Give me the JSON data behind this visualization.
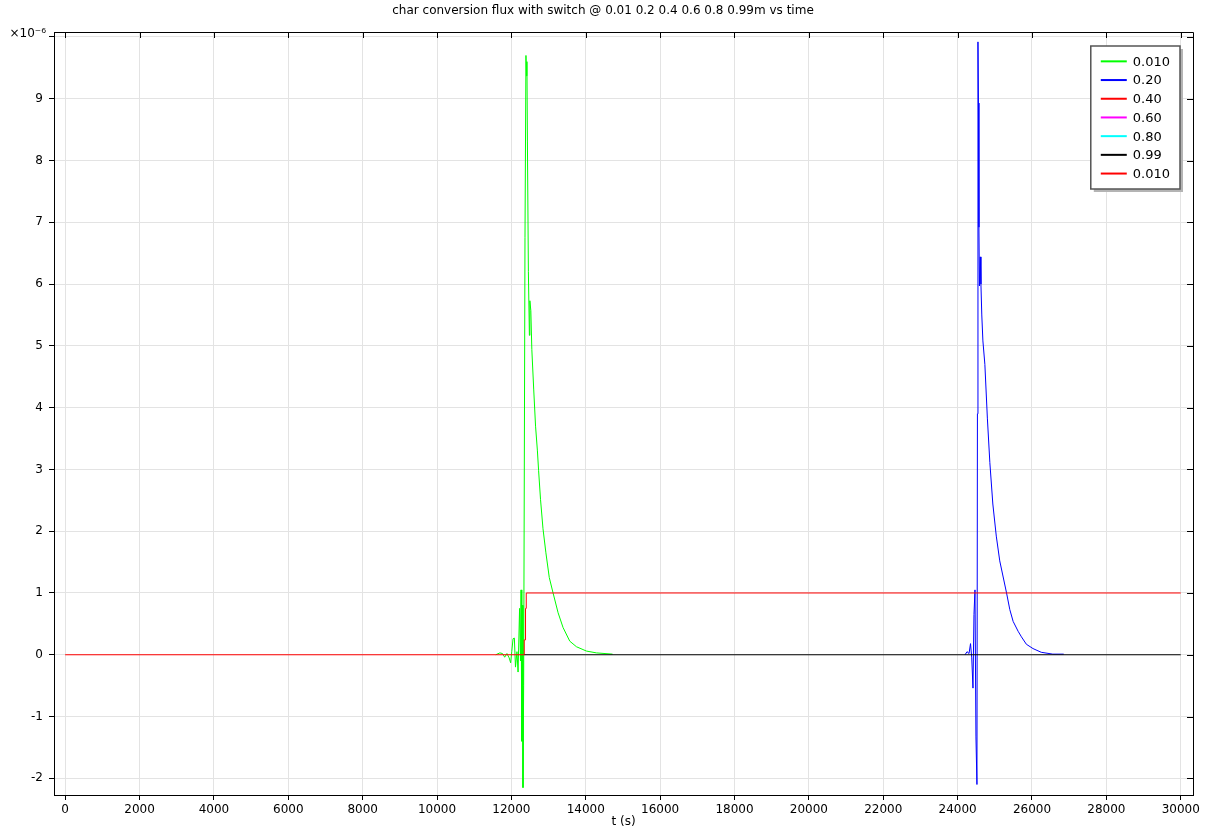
{
  "chart_data": {
    "type": "line",
    "title": "char conversion flux with switch @ 0.01 0.2 0.4 0.6 0.8 0.99m vs time",
    "xlabel": "t (s)",
    "annotations": [
      "×10⁻⁶"
    ],
    "xlim": [
      -300,
      30330
    ],
    "xticks": [
      0,
      2000,
      4000,
      6000,
      8000,
      10000,
      12000,
      14000,
      16000,
      18000,
      20000,
      22000,
      24000,
      26000,
      28000,
      30000
    ],
    "ylim": [
      -2.27,
      10.08
    ],
    "yticks": [
      -2,
      -1,
      0,
      1,
      2,
      3,
      4,
      5,
      6,
      7,
      8,
      9,
      {
        "value": 10,
        "label": null
      }
    ],
    "grid": true,
    "legend": "top right",
    "marker": "none",
    "line_style": "solid",
    "series": [
      {
        "name": "0.010",
        "color": "#00ff00",
        "x": [
          11580,
          11690,
          11760,
          11820,
          11880,
          11940,
          11980,
          12010,
          12045,
          12080,
          12110,
          12150,
          12180,
          12220,
          12245,
          12260,
          12280,
          12295,
          12312,
          12330,
          12366,
          12392,
          12405,
          12418,
          12431,
          12457,
          12484,
          12497,
          12523,
          12550,
          12600,
          12650,
          12700,
          12732,
          12784,
          12850,
          12928,
          13019,
          13121,
          13256,
          13390,
          13570,
          13749,
          14018,
          14287,
          14720
        ],
        "values": [
          0,
          0.03,
          0.02,
          -0.04,
          0.02,
          -0.05,
          -0.13,
          0.05,
          0.26,
          0.27,
          -0.2,
          0.05,
          -0.28,
          0.75,
          -0.1,
          1.05,
          -1.4,
          0.8,
          -2.15,
          -0.5,
          6.75,
          9.7,
          9.37,
          9.6,
          8.3,
          6.2,
          5.17,
          5.73,
          5.57,
          4.94,
          4.3,
          3.7,
          3.3,
          2.98,
          2.51,
          2.04,
          1.65,
          1.25,
          1.0,
          0.68,
          0.44,
          0.22,
          0.13,
          0.06,
          0.03,
          0.01
        ]
      },
      {
        "name": "0.20",
        "color": "#0000ff",
        "x": [
          24200,
          24253,
          24307,
          24347,
          24380,
          24413,
          24440,
          24467,
          24493,
          24520,
          24533,
          24547,
          24560,
          24573,
          24587,
          24610,
          24627,
          24650,
          24680,
          24733,
          24800,
          24867,
          24947,
          25040,
          25133,
          25316,
          25404,
          25493,
          25627,
          25716,
          25849,
          26027,
          26249,
          26560,
          26853
        ],
        "values": [
          0,
          0.05,
          0.02,
          0.18,
          -0.05,
          -0.54,
          0.65,
          1.05,
          -1.33,
          -2.1,
          3.9,
          9.92,
          8.93,
          6.92,
          5.97,
          6.44,
          6.0,
          5.5,
          5.08,
          4.7,
          3.83,
          3.11,
          2.44,
          1.92,
          1.52,
          1.0,
          0.73,
          0.54,
          0.38,
          0.29,
          0.17,
          0.1,
          0.04,
          0.01,
          0.01
        ]
      },
      {
        "name": "0.40",
        "color": "#ff0000"
      },
      {
        "name": "0.60",
        "color": "#ff00ff"
      },
      {
        "name": "0.80",
        "color": "#00ffff"
      },
      {
        "name": "0.99",
        "color": "#000000",
        "x": [
          12340,
          30000
        ],
        "values": [
          0,
          0
        ]
      },
      {
        "name": "0.010",
        "color": "#ff0000",
        "x": [
          0,
          12340,
          12345,
          12375,
          12380,
          12395,
          12400,
          30000
        ],
        "values": [
          0,
          0,
          0.24,
          0.24,
          0.75,
          0.75,
          1,
          1
        ]
      }
    ]
  }
}
